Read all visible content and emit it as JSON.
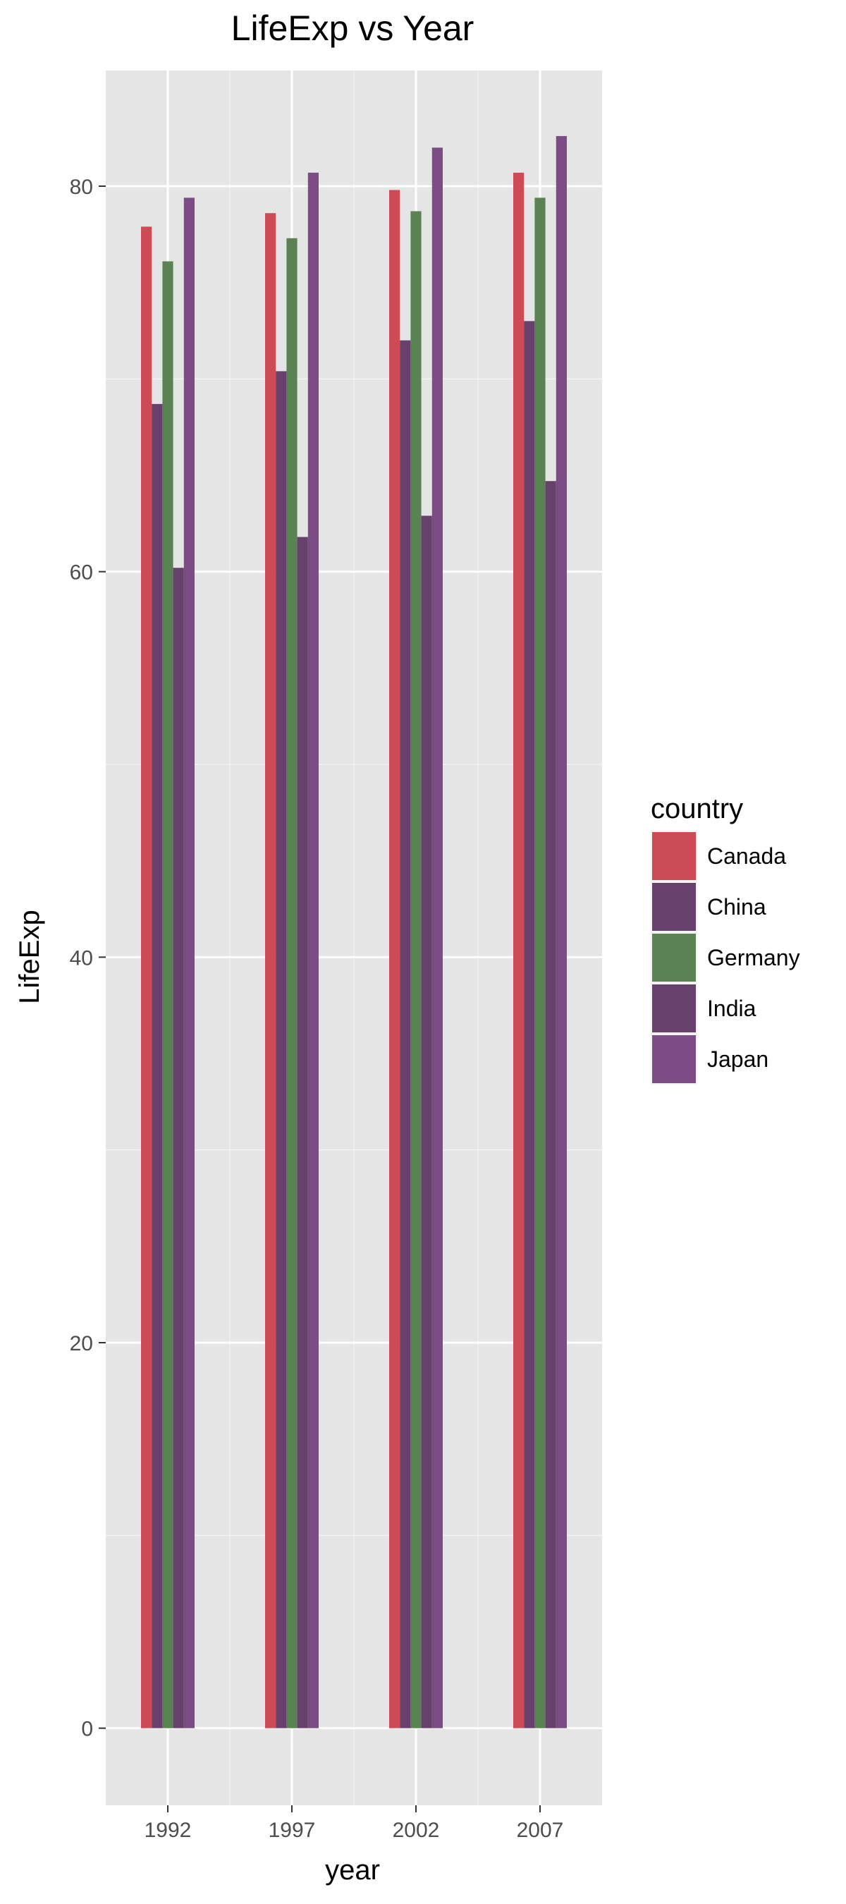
{
  "chart_data": {
    "type": "bar",
    "title": "LifeExp vs Year",
    "xlabel": "year",
    "ylabel": "LifeExp",
    "categories": [
      "1992",
      "1997",
      "2002",
      "2007"
    ],
    "ylim": [
      -4,
      86
    ],
    "yticks": [
      0,
      20,
      40,
      60,
      80
    ],
    "grid": true,
    "legend": {
      "title": "country",
      "position": "right"
    },
    "series": [
      {
        "name": "Canada",
        "color": "#cc4b55",
        "values": [
          77.9,
          78.6,
          79.8,
          80.7
        ]
      },
      {
        "name": "China",
        "color": "#67416c",
        "values": [
          68.7,
          70.4,
          72.0,
          73.0
        ]
      },
      {
        "name": "Germany",
        "color": "#5b8253",
        "values": [
          76.1,
          77.3,
          78.7,
          79.4
        ]
      },
      {
        "name": "India",
        "color": "#67416c",
        "values": [
          60.2,
          61.8,
          62.9,
          64.7
        ]
      },
      {
        "name": "Japan",
        "color": "#7b4c85",
        "values": [
          79.4,
          80.7,
          82.0,
          82.6
        ]
      }
    ]
  }
}
